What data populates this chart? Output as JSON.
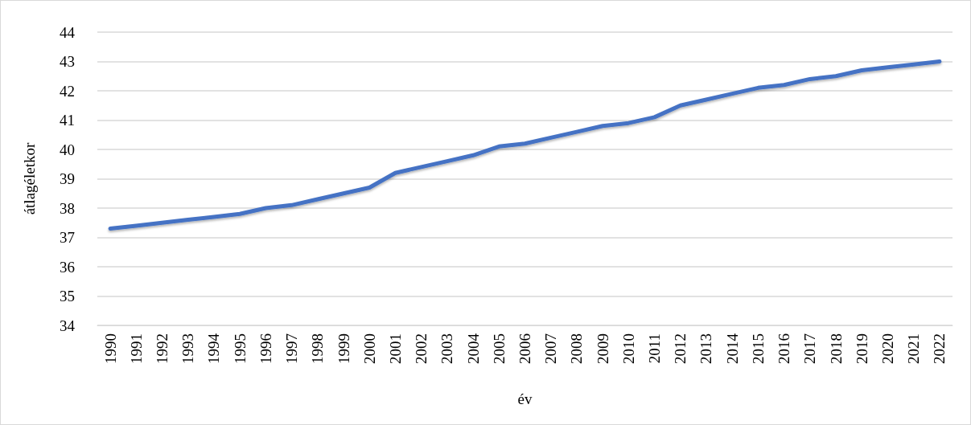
{
  "chart_data": {
    "type": "line",
    "xlabel": "év",
    "ylabel": "átlagéletkor",
    "categories": [
      "1990",
      "1991",
      "1992",
      "1993",
      "1994",
      "1995",
      "1996",
      "1997",
      "1998",
      "1999",
      "2000",
      "2001",
      "2002",
      "2003",
      "2004",
      "2005",
      "2006",
      "2007",
      "2008",
      "2009",
      "2010",
      "2011",
      "2012",
      "2013",
      "2014",
      "2015",
      "2016",
      "2017",
      "2018",
      "2019",
      "2020",
      "2021",
      "2022"
    ],
    "series": [
      {
        "color": "#4472c4",
        "values": [
          37.3,
          37.4,
          37.5,
          37.6,
          37.7,
          37.8,
          38.0,
          38.1,
          38.3,
          38.5,
          38.7,
          39.2,
          39.4,
          39.6,
          39.8,
          40.1,
          40.2,
          40.4,
          40.6,
          40.8,
          40.9,
          41.1,
          41.5,
          41.7,
          41.9,
          42.1,
          42.2,
          42.4,
          42.5,
          42.7,
          42.8,
          42.9,
          43.0
        ]
      }
    ],
    "ylim": [
      34,
      44
    ],
    "yticks": [
      34,
      35,
      36,
      37,
      38,
      39,
      40,
      41,
      42,
      43,
      44
    ],
    "grid": "y",
    "marker": "none",
    "line_style": "solid"
  }
}
